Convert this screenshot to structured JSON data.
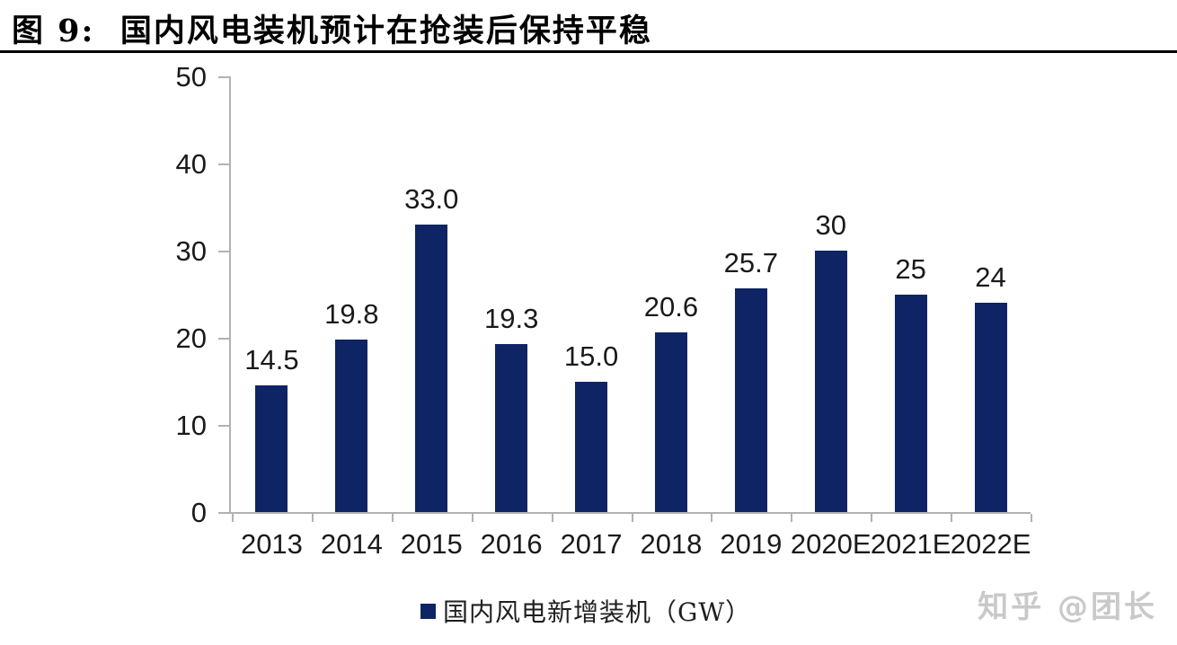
{
  "header": {
    "title": "图 9:  国内风电装机预计在抢装后保持平稳"
  },
  "watermark": {
    "text": "知乎 @团长"
  },
  "chart_data": {
    "type": "bar",
    "title": "图 9: 国内风电装机预计在抢装后保持平稳",
    "categories": [
      "2013",
      "2014",
      "2015",
      "2016",
      "2017",
      "2018",
      "2019",
      "2020E",
      "2021E",
      "2022E"
    ],
    "values": [
      14.5,
      19.8,
      33.0,
      19.3,
      15.0,
      20.6,
      25.7,
      30,
      25,
      24
    ],
    "value_labels": [
      "14.5",
      "19.8",
      "33.0",
      "19.3",
      "15.0",
      "20.6",
      "25.7",
      "30",
      "25",
      "24"
    ],
    "legend_label": "国内风电新增装机（GW）",
    "xlabel": "",
    "ylabel": "",
    "ylim": [
      0,
      50
    ],
    "yticks": [
      0,
      10,
      20,
      30,
      40,
      50
    ],
    "ytick_labels": [
      "0",
      "10",
      "20",
      "30",
      "40",
      "50"
    ],
    "bar_color": "#0f2464",
    "axis_color": "#b2b2b2",
    "text_color": "#1a1a1a",
    "grid": false,
    "legend_position": "bottom"
  }
}
